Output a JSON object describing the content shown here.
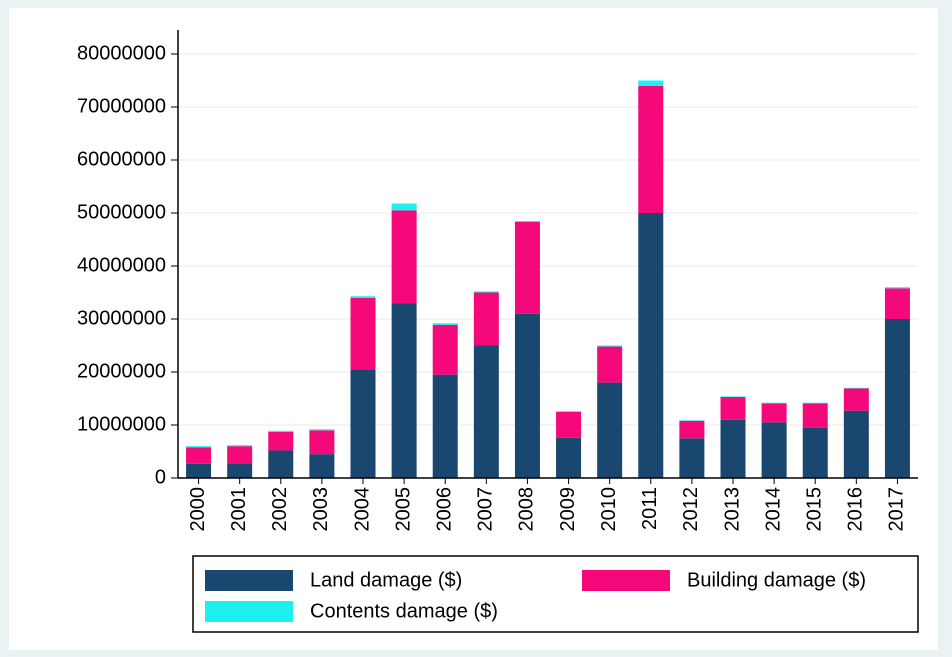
{
  "chart_data": {
    "type": "stacked_bar",
    "categories": [
      "2000",
      "2001",
      "2002",
      "2003",
      "2004",
      "2005",
      "2006",
      "2007",
      "2008",
      "2009",
      "2010",
      "2011",
      "2012",
      "2013",
      "2014",
      "2015",
      "2016",
      "2017"
    ],
    "series": [
      {
        "name": "Land damage ($)",
        "color": "#1a476f",
        "values": [
          2700000,
          2800000,
          5200000,
          4500000,
          20500000,
          33000000,
          19500000,
          25000000,
          31000000,
          7600000,
          18000000,
          50000000,
          7500000,
          11000000,
          10500000,
          9500000,
          12700000,
          30000000
        ]
      },
      {
        "name": "Building damage ($)",
        "color": "#f5087a",
        "values": [
          3100000,
          3200000,
          3500000,
          4500000,
          13500000,
          17500000,
          9400000,
          10000000,
          17300000,
          4900000,
          6800000,
          24000000,
          3300000,
          4300000,
          3600000,
          4600000,
          4200000,
          5800000
        ]
      },
      {
        "name": "Contents damage ($)",
        "color": "#1ef0f0",
        "values": [
          200000,
          200000,
          200000,
          200000,
          300000,
          1300000,
          300000,
          200000,
          200000,
          100000,
          200000,
          1000000,
          100000,
          100000,
          100000,
          100000,
          100000,
          200000
        ]
      }
    ],
    "ylim": [
      0,
      80000000
    ],
    "yticks": [
      0,
      10000000,
      20000000,
      30000000,
      40000000,
      50000000,
      60000000,
      70000000,
      80000000
    ],
    "grid": true
  }
}
